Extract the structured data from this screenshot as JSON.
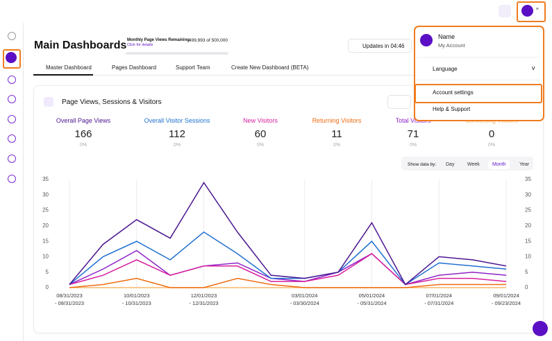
{
  "header": {
    "title": "Main Dashboards",
    "quota_label": "Monthly Page Views Remaining",
    "quota_value": "499,993 of 500,000",
    "quota_link": "Click for details",
    "updates": "Updates in 04:46"
  },
  "tabs": [
    "Master Dashboard",
    "Pages Dashboard",
    "Support Team",
    "Create New Dashboard (BETA)"
  ],
  "card": {
    "title": "Page Views, Sessions & Visitors",
    "range_label": "Show data by:",
    "ranges": [
      "Day",
      "Week",
      "Month",
      "Year"
    ],
    "selected_range": "Month",
    "stats": [
      {
        "label": "Overall Page Views",
        "value": 166,
        "change": "0%"
      },
      {
        "label": "Overall Visitor Sessions",
        "value": 112,
        "change": "0%"
      },
      {
        "label": "New Visitors",
        "value": 60,
        "change": "0%"
      },
      {
        "label": "Returning Visitors",
        "value": 11,
        "change": "0%"
      },
      {
        "label": "Total Visitors",
        "value": 71,
        "change": "0%"
      },
      {
        "label": "Converting Visitors",
        "value": 0,
        "change": "0%"
      }
    ]
  },
  "chart_data": {
    "type": "line",
    "categories": [
      "08/31/2023\n- 08/31/2023",
      null,
      "10/01/2023\n- 10/31/2023",
      null,
      "12/01/2023\n- 12/31/2023",
      null,
      null,
      "03/01/2024\n- 03/30/2024",
      null,
      "05/01/2024\n- 05/31/2024",
      null,
      "07/01/2024\n- 07/31/2024",
      null,
      "09/01/2024\n- 09/23/2024"
    ],
    "series": [
      {
        "name": "Overall Page Views",
        "color": "#4a1590",
        "values": [
          1,
          14,
          22,
          16,
          34,
          18,
          4,
          3,
          5,
          21,
          1,
          10,
          9,
          7
        ]
      },
      {
        "name": "Overall Visitor Sessions",
        "color": "#1f6fd0",
        "values": [
          1,
          10,
          15,
          9,
          18,
          11,
          3,
          3,
          5,
          15,
          1,
          8,
          7,
          6
        ]
      },
      {
        "name": "New Visitors",
        "color": "#d61f9e",
        "values": [
          1,
          4,
          9,
          4,
          7,
          7,
          2,
          2,
          4,
          11,
          1,
          3,
          3,
          2
        ]
      },
      {
        "name": "Returning Visitors",
        "color": "#ee6b10",
        "values": [
          0,
          1,
          3,
          0,
          0,
          3,
          1,
          0,
          0,
          0,
          0,
          1,
          1,
          1
        ]
      },
      {
        "name": "Total Visitors",
        "color": "#8e22c8",
        "values": [
          1,
          6,
          12,
          4,
          7,
          8,
          3,
          2,
          5,
          11,
          1,
          4,
          5,
          4
        ]
      },
      {
        "name": "Converting Visitors",
        "color": "#f9b56a",
        "values": [
          0,
          0,
          0,
          0,
          0,
          0,
          0,
          0,
          0,
          0,
          0,
          0,
          0,
          0
        ]
      }
    ],
    "ylim": [
      0,
      35
    ],
    "yticks": [
      0,
      5,
      10,
      15,
      20,
      25,
      30,
      35
    ],
    "grid": "x"
  },
  "menu": {
    "name": "Name",
    "subtitle": "My Account",
    "items": [
      "Language",
      "Account settings",
      "Help & Support"
    ]
  }
}
